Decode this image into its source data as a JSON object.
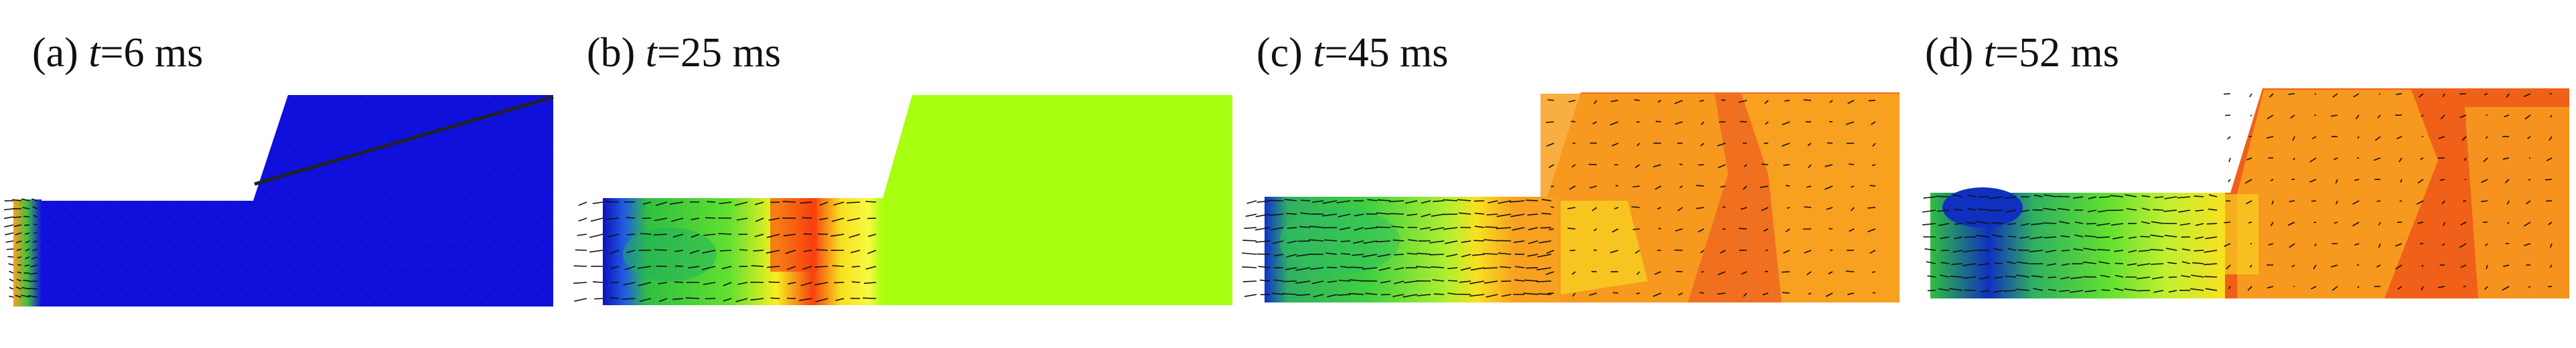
{
  "panels": [
    {
      "id": "a",
      "label": "(a) ",
      "t_var": "t",
      "t_value": "=6 ms"
    },
    {
      "id": "b",
      "label": "(b) ",
      "t_var": "t",
      "t_value": "=25 ms"
    },
    {
      "id": "c",
      "label": "(c) ",
      "t_var": "t",
      "t_value": "=45 ms"
    },
    {
      "id": "d",
      "label": "(d) ",
      "t_var": "t",
      "t_value": "=52 ms"
    }
  ],
  "colors": {
    "blue": "#1010e0",
    "lime": "#a8ff10",
    "green": "#30d040",
    "yellow": "#f8f020",
    "orange": "#f89010",
    "red": "#f04010",
    "dark": "#303030"
  }
}
